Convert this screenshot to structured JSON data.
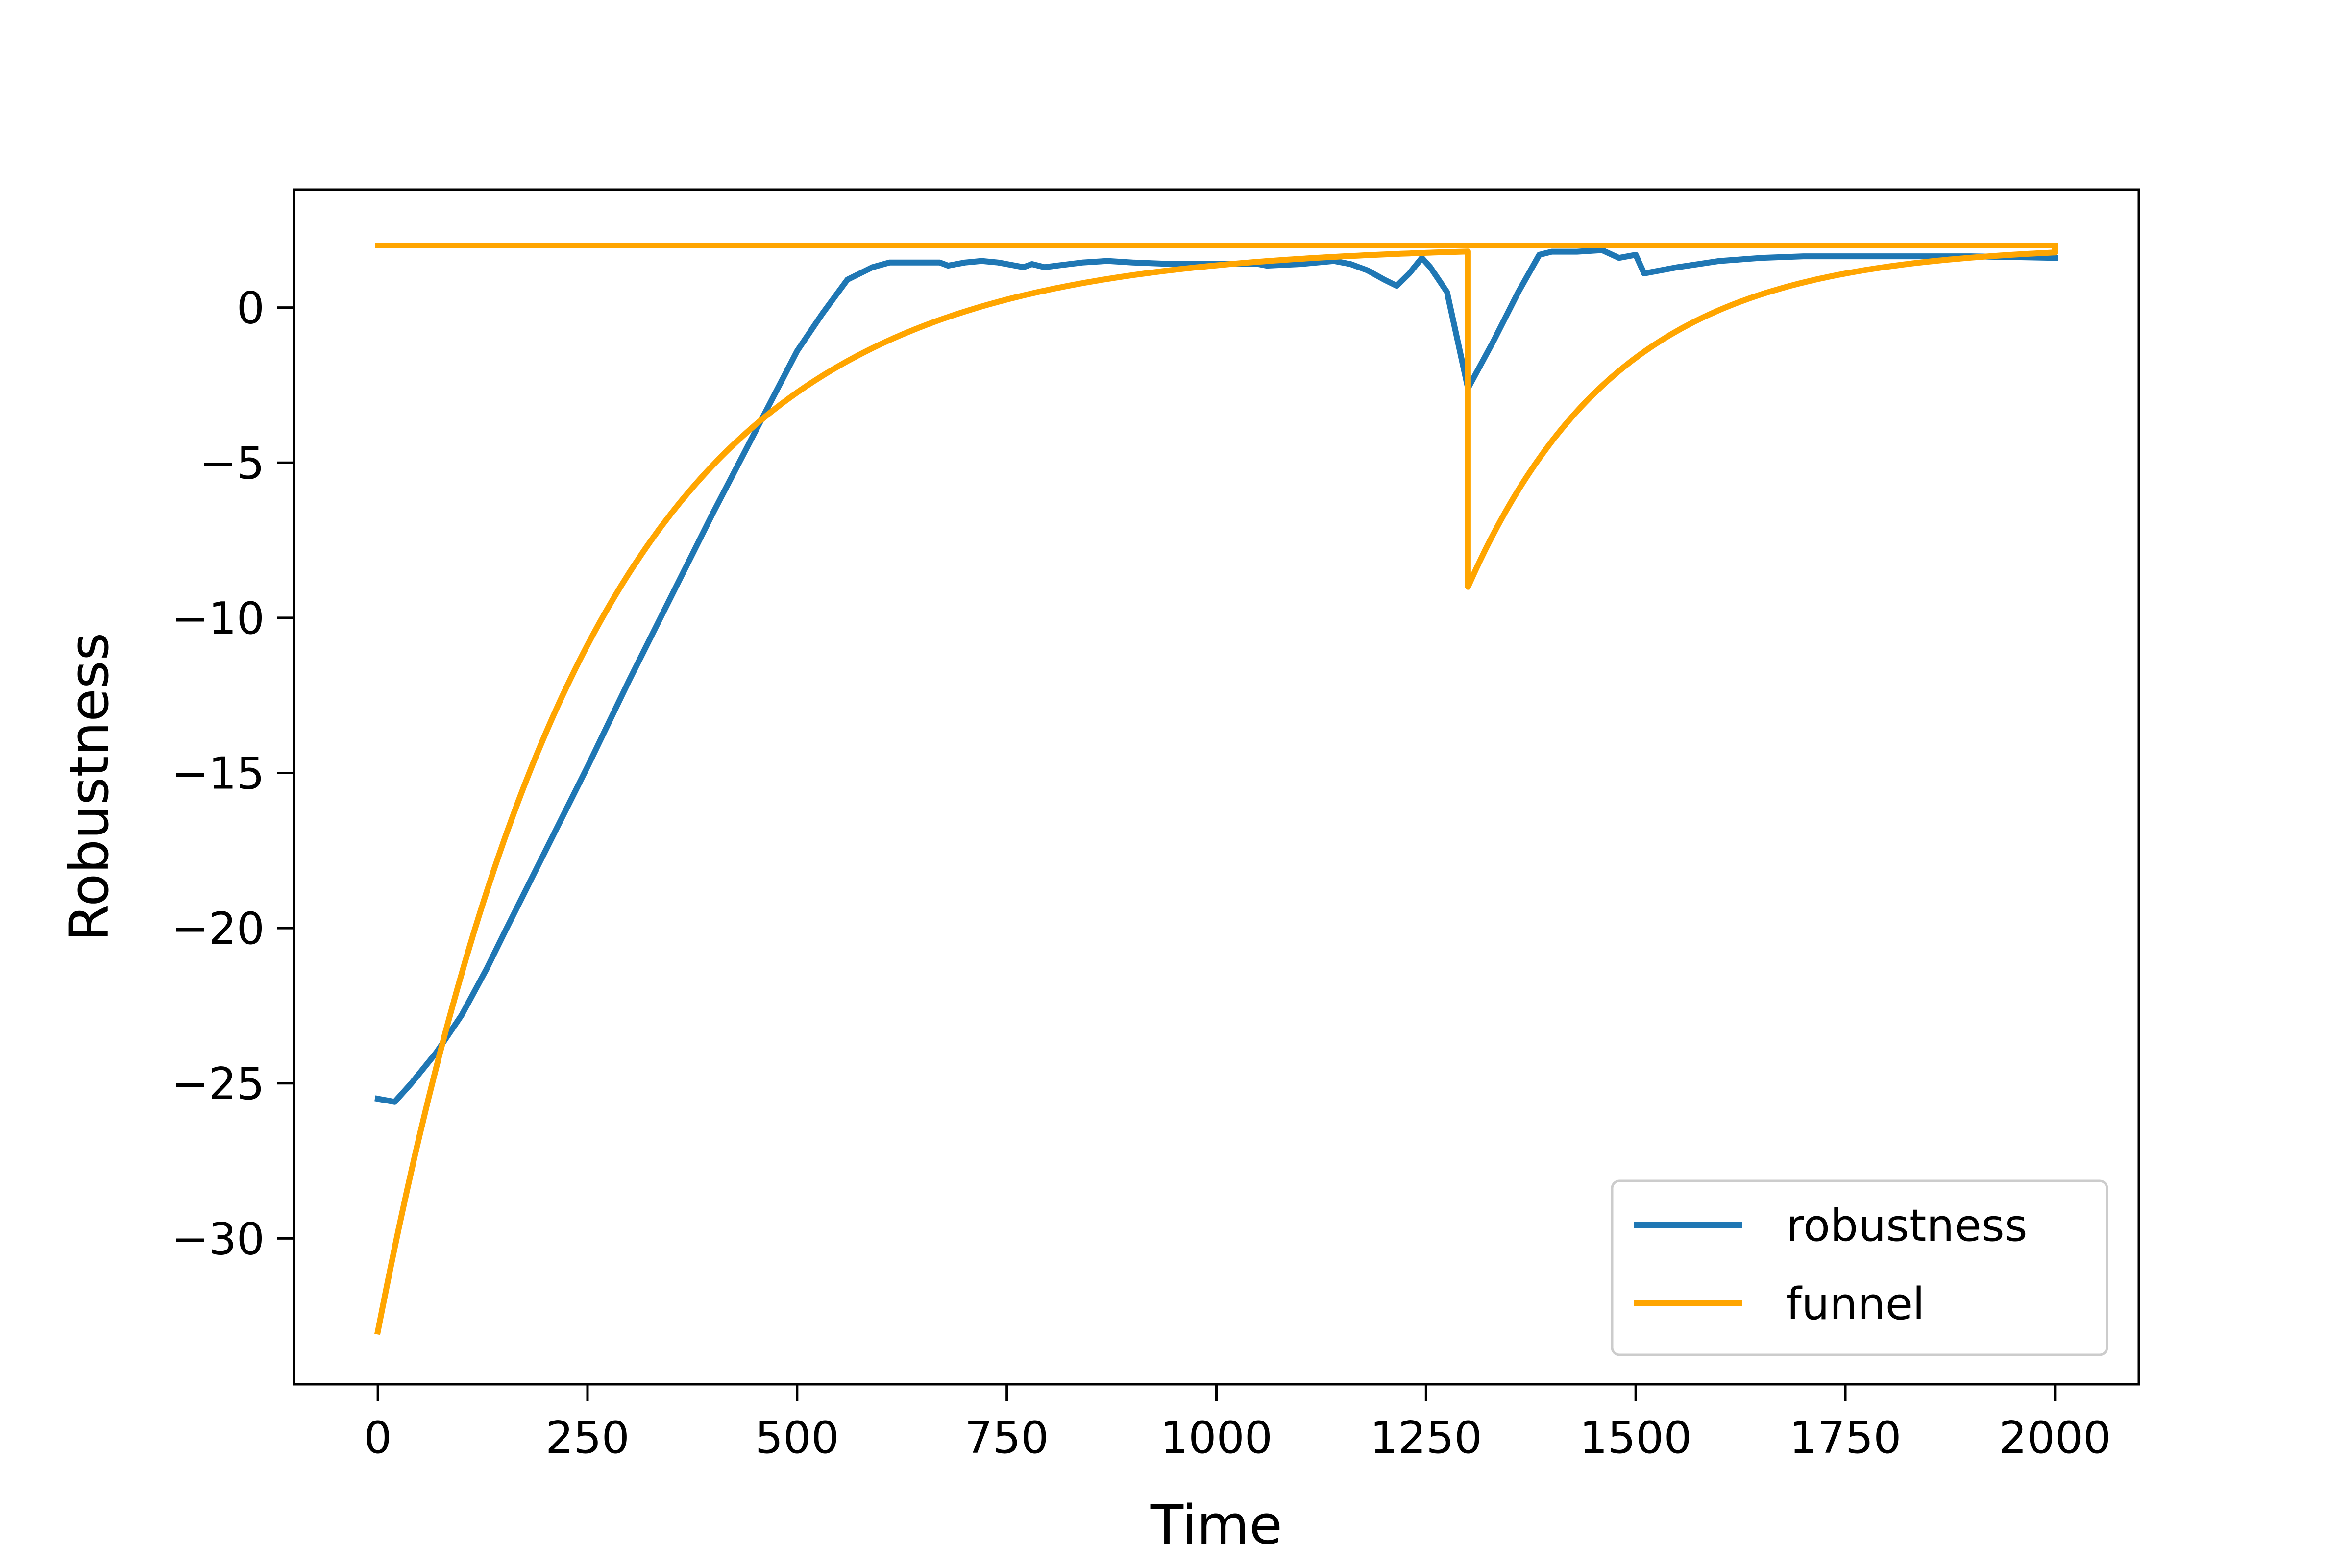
{
  "chart_data": {
    "type": "line",
    "title": "",
    "xlabel": "Time",
    "ylabel": "Robustness",
    "xlim": [
      -100,
      2100
    ],
    "ylim": [
      -34.7,
      3.8
    ],
    "xticks": [
      0,
      250,
      500,
      750,
      1000,
      1250,
      1500,
      1750,
      2000
    ],
    "xtick_labels": [
      "0",
      "250",
      "500",
      "750",
      "1000",
      "1250",
      "1500",
      "1750",
      "2000"
    ],
    "yticks": [
      0,
      -5,
      -10,
      -15,
      -20,
      -25,
      -30
    ],
    "ytick_labels": [
      "0",
      "−5",
      "−10",
      "−15",
      "−20",
      "−25",
      "−30"
    ],
    "grid": false,
    "legend_position": "lower-right",
    "series": [
      {
        "name": "robustness",
        "color": "#1f77b4",
        "points": [
          [
            0,
            -25.5
          ],
          [
            20,
            -25.6
          ],
          [
            40,
            -25.0
          ],
          [
            70,
            -24.0
          ],
          [
            100,
            -22.8
          ],
          [
            130,
            -21.3
          ],
          [
            150,
            -20.2
          ],
          [
            200,
            -17.5
          ],
          [
            250,
            -14.8
          ],
          [
            300,
            -12.0
          ],
          [
            350,
            -9.3
          ],
          [
            400,
            -6.6
          ],
          [
            450,
            -4.0
          ],
          [
            500,
            -1.4
          ],
          [
            530,
            -0.2
          ],
          [
            560,
            0.9
          ],
          [
            590,
            1.3
          ],
          [
            610,
            1.45
          ],
          [
            640,
            1.45
          ],
          [
            670,
            1.45
          ],
          [
            680,
            1.35
          ],
          [
            690,
            1.4
          ],
          [
            700,
            1.45
          ],
          [
            720,
            1.5
          ],
          [
            740,
            1.45
          ],
          [
            760,
            1.35
          ],
          [
            770,
            1.3
          ],
          [
            780,
            1.4
          ],
          [
            795,
            1.3
          ],
          [
            810,
            1.35
          ],
          [
            840,
            1.45
          ],
          [
            870,
            1.5
          ],
          [
            900,
            1.45
          ],
          [
            950,
            1.4
          ],
          [
            1000,
            1.4
          ],
          [
            1050,
            1.4
          ],
          [
            1060,
            1.35
          ],
          [
            1100,
            1.4
          ],
          [
            1120,
            1.45
          ],
          [
            1140,
            1.5
          ],
          [
            1160,
            1.4
          ],
          [
            1180,
            1.2
          ],
          [
            1200,
            0.9
          ],
          [
            1215,
            0.7
          ],
          [
            1230,
            1.1
          ],
          [
            1245,
            1.6
          ],
          [
            1255,
            1.3
          ],
          [
            1275,
            0.5
          ],
          [
            1300,
            -2.6
          ],
          [
            1330,
            -1.1
          ],
          [
            1360,
            0.5
          ],
          [
            1385,
            1.7
          ],
          [
            1400,
            1.8
          ],
          [
            1430,
            1.8
          ],
          [
            1460,
            1.85
          ],
          [
            1480,
            1.6
          ],
          [
            1500,
            1.7
          ],
          [
            1510,
            1.1
          ],
          [
            1550,
            1.3
          ],
          [
            1600,
            1.5
          ],
          [
            1650,
            1.6
          ],
          [
            1700,
            1.65
          ],
          [
            1800,
            1.65
          ],
          [
            1900,
            1.65
          ],
          [
            2000,
            1.6
          ]
        ]
      },
      {
        "name": "funnel",
        "color": "#ffa500",
        "upper_bound": 2,
        "segments": [
          {
            "t0": 0,
            "t1": 1300,
            "start": -33,
            "limit": 2,
            "tau": 250
          },
          {
            "t0": 1300,
            "t1": 2000,
            "start": -9,
            "limit": 2,
            "tau": 180
          }
        ],
        "key_points": [
          [
            0,
            -33
          ],
          [
            250,
            -10.9
          ],
          [
            500,
            -2.7
          ],
          [
            1000,
            1.4
          ],
          [
            1300,
            1.8
          ],
          [
            1300,
            -9
          ],
          [
            1500,
            -0.7
          ],
          [
            2000,
            1.7
          ]
        ]
      }
    ]
  }
}
